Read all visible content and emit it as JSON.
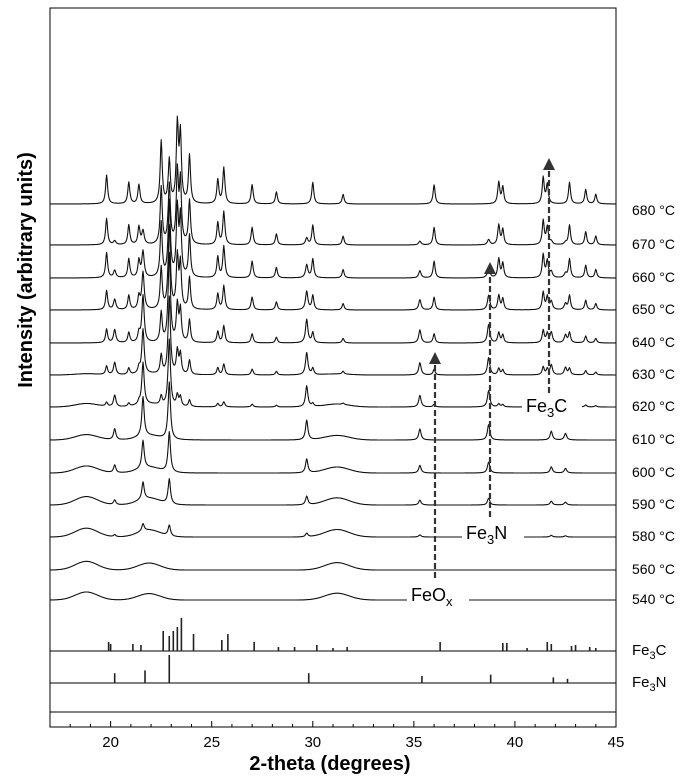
{
  "chart_data": {
    "type": "line",
    "xlabel": "2-theta (degrees)",
    "ylabel": "Intensity (arbitrary units)",
    "xlim": [
      17,
      45
    ],
    "xticks": [
      20,
      25,
      30,
      35,
      40,
      45
    ],
    "series": [
      {
        "name": "540 °C"
      },
      {
        "name": "560 °C"
      },
      {
        "name": "580 °C"
      },
      {
        "name": "590 °C"
      },
      {
        "name": "600 °C"
      },
      {
        "name": "610 °C"
      },
      {
        "name": "620 °C"
      },
      {
        "name": "630 °C"
      },
      {
        "name": "640 °C"
      },
      {
        "name": "650 °C"
      },
      {
        "name": "660 °C"
      },
      {
        "name": "670 °C"
      },
      {
        "name": "680 °C"
      }
    ],
    "reference_patterns": [
      {
        "name": "Fe3C",
        "peaks": [
          {
            "x": 19.9,
            "h": 0.45
          },
          {
            "x": 20.0,
            "h": 0.35
          },
          {
            "x": 21.1,
            "h": 0.35
          },
          {
            "x": 21.5,
            "h": 0.3
          },
          {
            "x": 22.6,
            "h": 1.0
          },
          {
            "x": 22.9,
            "h": 0.75
          },
          {
            "x": 23.1,
            "h": 1.0
          },
          {
            "x": 23.3,
            "h": 1.2
          },
          {
            "x": 23.5,
            "h": 1.65
          },
          {
            "x": 24.1,
            "h": 0.85
          },
          {
            "x": 25.5,
            "h": 0.55
          },
          {
            "x": 25.8,
            "h": 0.85
          },
          {
            "x": 27.1,
            "h": 0.45
          },
          {
            "x": 28.3,
            "h": 0.2
          },
          {
            "x": 29.1,
            "h": 0.2
          },
          {
            "x": 30.2,
            "h": 0.3
          },
          {
            "x": 31.0,
            "h": 0.15
          },
          {
            "x": 31.7,
            "h": 0.2
          },
          {
            "x": 36.3,
            "h": 0.45
          },
          {
            "x": 39.4,
            "h": 0.4
          },
          {
            "x": 39.6,
            "h": 0.4
          },
          {
            "x": 40.6,
            "h": 0.15
          },
          {
            "x": 41.6,
            "h": 0.45
          },
          {
            "x": 41.8,
            "h": 0.35
          },
          {
            "x": 42.8,
            "h": 0.25
          },
          {
            "x": 43.0,
            "h": 0.3
          },
          {
            "x": 43.7,
            "h": 0.2
          },
          {
            "x": 44.0,
            "h": 0.15
          }
        ]
      },
      {
        "name": "Fe3N",
        "peaks": [
          {
            "x": 20.2,
            "h": 0.35
          },
          {
            "x": 21.7,
            "h": 0.45
          },
          {
            "x": 22.9,
            "h": 1.0
          },
          {
            "x": 29.8,
            "h": 0.35
          },
          {
            "x": 35.4,
            "h": 0.25
          },
          {
            "x": 38.8,
            "h": 0.3
          },
          {
            "x": 41.9,
            "h": 0.2
          },
          {
            "x": 42.6,
            "h": 0.15
          }
        ]
      }
    ],
    "annotations": [
      {
        "text": "FeOx",
        "arrow_x": 36.0
      },
      {
        "text": "Fe3N",
        "arrow_x": 38.9
      },
      {
        "text": "Fe3C",
        "arrow_x": 41.8
      }
    ]
  },
  "labels": {
    "xlabel": "2-theta (degrees)",
    "ylabel": "Intensity (arbitrary units)",
    "ref_fe3c_main": "Fe",
    "ref_fe3c_sub": "3",
    "ref_fe3c_tail": "C",
    "ref_fe3n_main": "Fe",
    "ref_fe3n_sub": "3",
    "ref_fe3n_tail": "N",
    "annot_feox_main": "FeO",
    "annot_feox_sub": "x",
    "annot_fe3n_main": "Fe",
    "annot_fe3n_sub": "3",
    "annot_fe3n_tail": "N",
    "annot_fe3c_main": "Fe",
    "annot_fe3c_sub": "3",
    "annot_fe3c_tail": "C",
    "x_ticks": [
      "20",
      "25",
      "30",
      "35",
      "40",
      "45"
    ],
    "temps": [
      "540 °C",
      "560 °C",
      "580 °C",
      "590 °C",
      "600 °C",
      "610 °C",
      "620 °C",
      "630 °C",
      "640 °C",
      "650 °C",
      "660 °C",
      "670 °C",
      "680 °C"
    ]
  }
}
